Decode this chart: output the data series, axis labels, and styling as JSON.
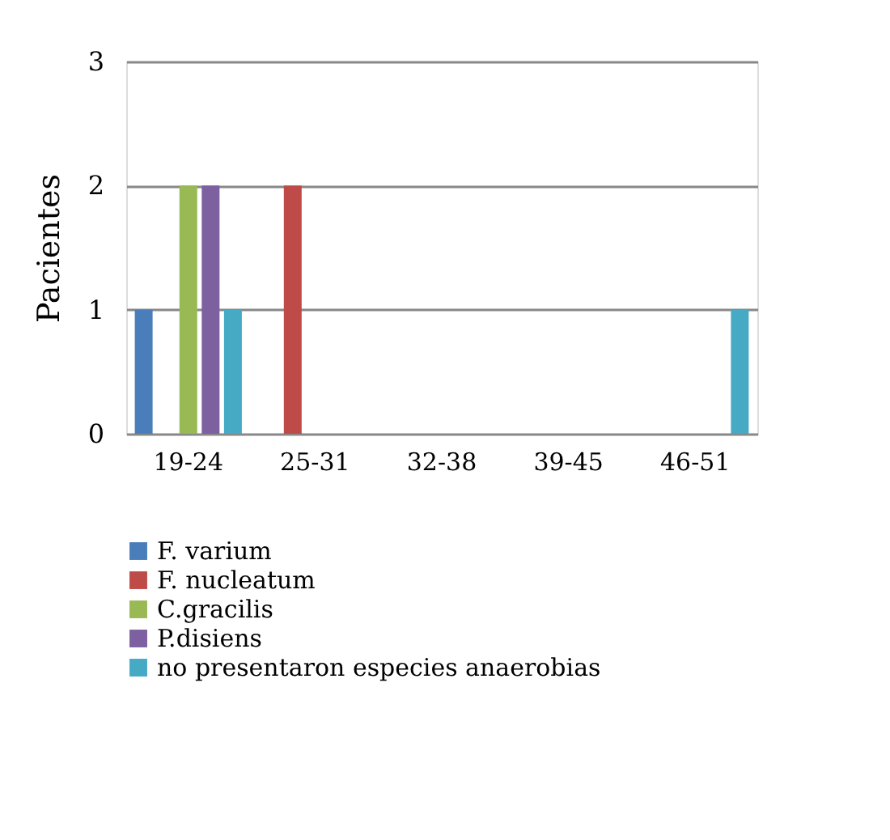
{
  "chart_data": {
    "type": "bar",
    "ylabel": "Pacientes",
    "categories": [
      "19-24",
      "25-31",
      "32-38",
      "39-45",
      "46-51"
    ],
    "series": [
      {
        "name": "F. varium",
        "color": "#4a7ebb",
        "values": [
          1,
          0,
          0,
          0,
          0
        ]
      },
      {
        "name": "F. nucleatum",
        "color": "#be4b48",
        "values": [
          0,
          2,
          0,
          0,
          0
        ]
      },
      {
        "name": "C.gracilis",
        "color": "#98b954",
        "values": [
          2,
          0,
          0,
          0,
          0
        ]
      },
      {
        "name": "P.disiens",
        "color": "#7d60a0",
        "values": [
          2,
          0,
          0,
          0,
          0
        ]
      },
      {
        "name": "no presentaron especies anaerobias",
        "color": "#46aac5",
        "values": [
          1,
          0,
          0,
          0,
          1
        ]
      }
    ],
    "ylim": [
      0,
      3
    ],
    "yticks": [
      0,
      1,
      2,
      3
    ],
    "grid": "y",
    "legend": "bottom"
  }
}
